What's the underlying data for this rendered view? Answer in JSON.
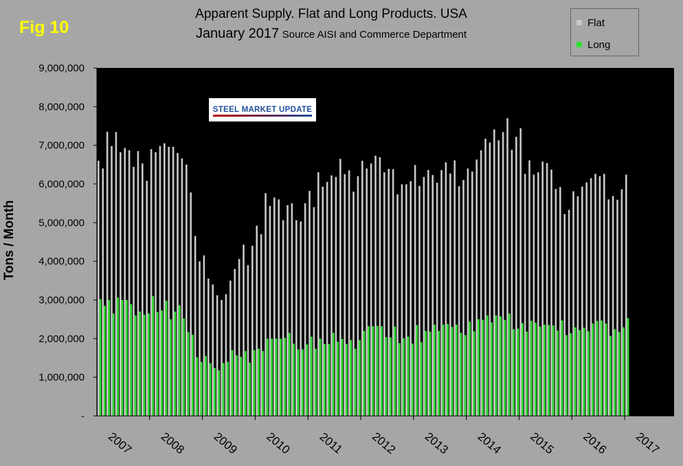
{
  "figure_label": "Fig 10",
  "title_line1": "Apparent Supply. Flat and Long Products. USA",
  "title_line2_main": "January 2017",
  "title_line2_source": "Source AISI and Commerce Department",
  "logo_text": "STEEL MARKET UPDATE",
  "colors": {
    "flat": "#c8c8c8",
    "long": "#33dd33",
    "plot_bg": "#000000",
    "page_bg": "#a6a6a6",
    "fig_label": "#ffff00"
  },
  "chart_data": {
    "type": "bar",
    "ylabel": "Tons / Month",
    "ylim": [
      0,
      9000000
    ],
    "y_ticks": [
      {
        "value": 0,
        "label": "-"
      },
      {
        "value": 1000000,
        "label": "1,000,000"
      },
      {
        "value": 2000000,
        "label": "2,000,000"
      },
      {
        "value": 3000000,
        "label": "3,000,000"
      },
      {
        "value": 4000000,
        "label": "4,000,000"
      },
      {
        "value": 5000000,
        "label": "5,000,000"
      },
      {
        "value": 6000000,
        "label": "6,000,000"
      },
      {
        "value": 7000000,
        "label": "7,000,000"
      },
      {
        "value": 8000000,
        "label": "8,000,000"
      },
      {
        "value": 9000000,
        "label": "9,000,000"
      }
    ],
    "x_labels": [
      "2007",
      "2008",
      "2009",
      "2010",
      "2011",
      "2012",
      "2013",
      "2014",
      "2015",
      "2016",
      "2017"
    ],
    "legend": {
      "position": "top-right",
      "entries": [
        "Flat",
        "Long"
      ]
    },
    "grid": false,
    "start_month": "2007-01",
    "series": [
      {
        "name": "Flat",
        "values": [
          6600000,
          6400000,
          7350000,
          6980000,
          7340000,
          6820000,
          6930000,
          6870000,
          6440000,
          6850000,
          6530000,
          6080000,
          6900000,
          6820000,
          6980000,
          7050000,
          6960000,
          6960000,
          6800000,
          6660000,
          6500000,
          5780000,
          4650000,
          4000000,
          4150000,
          3550000,
          3400000,
          3120000,
          3000000,
          3150000,
          3500000,
          3800000,
          4060000,
          4430000,
          3900000,
          4400000,
          4920000,
          4700000,
          5760000,
          5430000,
          5650000,
          5600000,
          5060000,
          5450000,
          5500000,
          5060000,
          5030000,
          5500000,
          5820000,
          5400000,
          6300000,
          5930000,
          6050000,
          6220000,
          6180000,
          6650000,
          6250000,
          6350000,
          5800000,
          6200000,
          6600000,
          6400000,
          6530000,
          6730000,
          6690000,
          6300000,
          6390000,
          6380000,
          5730000,
          5990000,
          5990000,
          6070000,
          6490000,
          5950000,
          6180000,
          6360000,
          6230000,
          6030000,
          6360000,
          6560000,
          6270000,
          6610000,
          5940000,
          6100000,
          6400000,
          6320000,
          6630000,
          6870000,
          7170000,
          7070000,
          7410000,
          7130000,
          7340000,
          7700000,
          6880000,
          7220000,
          7440000,
          6260000,
          6610000,
          6240000,
          6300000,
          6580000,
          6540000,
          6370000,
          5870000,
          5920000,
          5220000,
          5330000,
          5810000,
          5680000,
          5930000,
          6040000,
          6150000,
          6260000,
          6200000,
          6260000,
          5600000,
          5690000,
          5590000,
          5860000,
          6240000
        ]
      },
      {
        "name": "Long",
        "values": [
          3020000,
          2850000,
          3000000,
          2650000,
          3060000,
          3000000,
          3000000,
          2890000,
          2600000,
          2700000,
          2620000,
          2650000,
          3100000,
          2690000,
          2730000,
          2980000,
          2500000,
          2700000,
          2860000,
          2520000,
          2170000,
          2100000,
          1520000,
          1400000,
          1550000,
          1360000,
          1240000,
          1180000,
          1370000,
          1400000,
          1700000,
          1570000,
          1530000,
          1680000,
          1380000,
          1700000,
          1740000,
          1680000,
          2000000,
          2000000,
          2000000,
          2000000,
          2020000,
          2150000,
          1870000,
          1720000,
          1720000,
          1850000,
          2050000,
          1740000,
          2000000,
          1860000,
          1860000,
          2150000,
          1920000,
          1990000,
          1860000,
          1960000,
          1740000,
          1960000,
          2200000,
          2320000,
          2320000,
          2330000,
          2320000,
          2040000,
          2030000,
          2310000,
          1880000,
          2010000,
          2050000,
          1870000,
          2350000,
          1910000,
          2200000,
          2180000,
          2360000,
          2200000,
          2360000,
          2380000,
          2300000,
          2360000,
          2150000,
          2090000,
          2440000,
          2190000,
          2500000,
          2480000,
          2600000,
          2420000,
          2600000,
          2580000,
          2480000,
          2650000,
          2240000,
          2260000,
          2400000,
          2180000,
          2460000,
          2410000,
          2310000,
          2360000,
          2350000,
          2340000,
          2210000,
          2470000,
          2090000,
          2140000,
          2290000,
          2220000,
          2280000,
          2190000,
          2390000,
          2460000,
          2470000,
          2390000,
          2070000,
          2240000,
          2170000,
          2290000,
          2530000
        ]
      }
    ]
  }
}
